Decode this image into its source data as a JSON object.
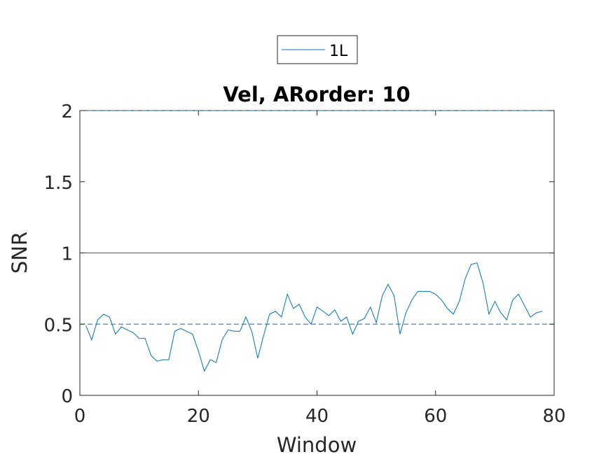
{
  "chart_data": {
    "type": "line",
    "title": "Vel, ARorder: 10",
    "xlabel": "Window",
    "ylabel": "SNR",
    "xlim": [
      0,
      80
    ],
    "ylim": [
      0,
      2
    ],
    "xticks": [
      0,
      20,
      40,
      60,
      80
    ],
    "yticks": [
      0,
      0.5,
      1,
      1.5,
      2
    ],
    "xtick_labels": [
      "0",
      "20",
      "40",
      "60",
      "80"
    ],
    "ytick_labels": [
      "0",
      "0.5",
      "1",
      "1.5",
      "2"
    ],
    "grid": false,
    "legend": {
      "position": "top-center-outside",
      "entries": [
        "1L"
      ]
    },
    "series": [
      {
        "name": "1L",
        "color": "#0072BD",
        "style": "solid",
        "x": [
          1,
          2,
          3,
          4,
          5,
          6,
          7,
          8,
          9,
          10,
          11,
          12,
          13,
          14,
          15,
          16,
          17,
          18,
          19,
          20,
          21,
          22,
          23,
          24,
          25,
          26,
          27,
          28,
          29,
          30,
          31,
          32,
          33,
          34,
          35,
          36,
          37,
          38,
          39,
          40,
          41,
          42,
          43,
          44,
          45,
          46,
          47,
          48,
          49,
          50,
          51,
          52,
          53,
          54,
          55,
          56,
          57,
          58,
          59,
          60,
          61,
          62,
          63,
          64,
          65,
          66,
          67,
          68,
          69,
          70,
          71,
          72,
          73,
          74,
          75,
          76,
          77,
          78
        ],
        "y": [
          0.49,
          0.39,
          0.53,
          0.57,
          0.55,
          0.43,
          0.48,
          0.46,
          0.44,
          0.4,
          0.4,
          0.28,
          0.24,
          0.25,
          0.25,
          0.45,
          0.47,
          0.45,
          0.43,
          0.31,
          0.17,
          0.25,
          0.23,
          0.39,
          0.46,
          0.45,
          0.45,
          0.55,
          0.45,
          0.26,
          0.42,
          0.57,
          0.59,
          0.55,
          0.71,
          0.61,
          0.64,
          0.55,
          0.5,
          0.62,
          0.59,
          0.56,
          0.6,
          0.52,
          0.55,
          0.43,
          0.52,
          0.54,
          0.62,
          0.51,
          0.7,
          0.78,
          0.7,
          0.43,
          0.58,
          0.67,
          0.73,
          0.73,
          0.73,
          0.71,
          0.67,
          0.61,
          0.57,
          0.66,
          0.82,
          0.92,
          0.93,
          0.79,
          0.57,
          0.66,
          0.58,
          0.53,
          0.67,
          0.71,
          0.63,
          0.55,
          0.58,
          0.59
        ]
      }
    ],
    "reference_lines": [
      {
        "y": 2,
        "style": "dashed",
        "color": "#0072BD"
      },
      {
        "y": 1,
        "style": "solid",
        "color": "#0072BD"
      },
      {
        "y": 0.5,
        "style": "dashed",
        "color": "#0072BD"
      }
    ]
  }
}
